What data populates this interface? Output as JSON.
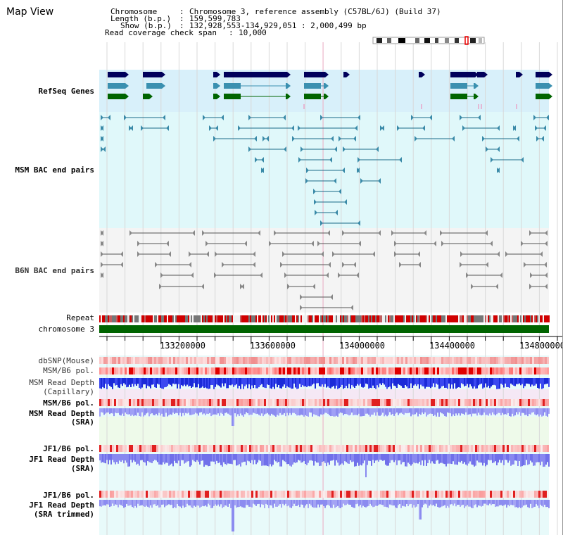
{
  "page": {
    "title": "Map View"
  },
  "info": {
    "chromosome_label": "Chromosome",
    "chromosome_value": "Chromosome 3, reference assembly (C57BL/6J) (Build 37)",
    "length_label": "Length (b.p.)",
    "length_value": "159,599,783",
    "show_label": "Show (b.p.)",
    "show_value": "132,928,553-134,929,051 : 2,000,499 bp",
    "span_label": "Read coverage check span",
    "span_value": "10,000"
  },
  "tracks": {
    "refseq": "RefSeq Genes",
    "msm_bac": "MSM BAC end pairs",
    "b6n_bac": "B6N BAC end pairs",
    "repeat": "Repeat",
    "chrom": "chromosome 3",
    "dbsnp": "dbSNP(Mouse)",
    "msm_pol": "MSM/B6 pol.",
    "msm_depth_cap": "MSM Read Depth",
    "msm_depth_cap_sub": "(Capillary)",
    "msm_pol2": "MSM/B6 pol.",
    "msm_depth_sra": "MSM Read Depth",
    "msm_depth_sra_sub": "(SRA)",
    "jf1_pol": "JF1/B6 pol.",
    "jf1_depth_sra": "JF1 Read Depth",
    "jf1_depth_sra_sub": "(SRA)",
    "jf1_pol2": "JF1/B6 pol.",
    "jf1_depth_trim": "JF1 Read Depth",
    "jf1_depth_trim_sub": "(SRA trimmed)"
  },
  "axis": {
    "ticks": [
      "133200000",
      "133600000",
      "134000000",
      "134400000",
      "134800000"
    ]
  },
  "colors": {
    "navy": "#00005a",
    "teal_label": "#006078",
    "refseq_label": "#0000c0",
    "orange_label": "#d89000",
    "depth_label": "#0000a0",
    "chrom_green": "#006400",
    "refseq_bg": "#d8f0fa",
    "msm_bg": "#e0f8fa",
    "b6n_bg": "#f4f4f4"
  }
}
